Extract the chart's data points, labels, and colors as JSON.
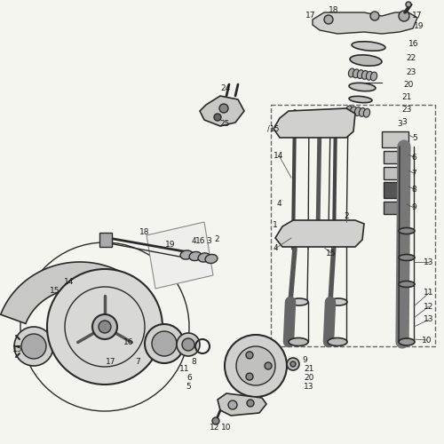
{
  "bg_color": "#f5f5f0",
  "fg_color": "#1a1a1a",
  "fig_width": 5.0,
  "fig_height": 5.0,
  "dpi": 100
}
